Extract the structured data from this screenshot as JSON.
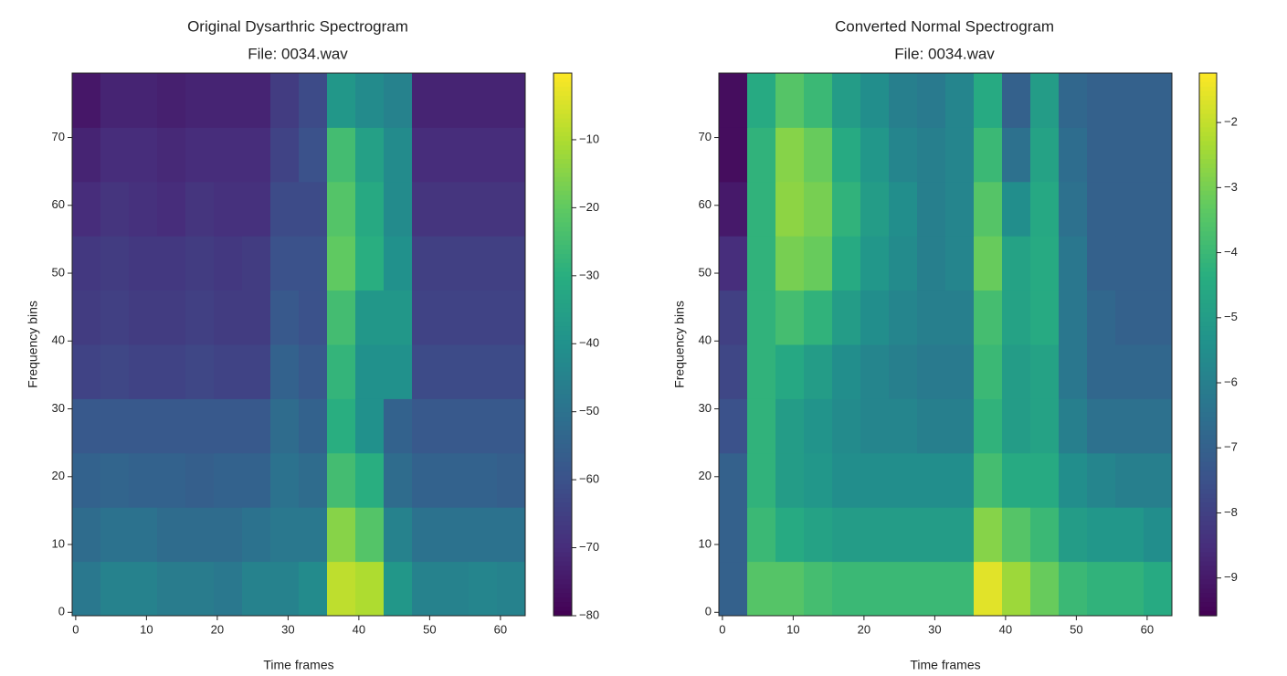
{
  "chart_data": [
    {
      "type": "heatmap",
      "title": "Original Dysarthric Spectrogram",
      "subtitle": "File: 0034.wav",
      "xlabel": "Time frames",
      "ylabel": "Frequency bins",
      "colormap": "viridis",
      "x_edges": [
        -0.5,
        3.5,
        7.5,
        11.5,
        15.5,
        19.5,
        23.5,
        27.5,
        31.5,
        35.5,
        39.5,
        43.5,
        47.5,
        51.5,
        55.5,
        59.5,
        63.5
      ],
      "y_edges": [
        -0.5,
        7.5,
        15.5,
        23.5,
        31.5,
        39.5,
        47.5,
        55.5,
        63.5,
        71.5,
        79.5
      ],
      "values": [
        [
          -48,
          -45,
          -45,
          -47,
          -47,
          -48,
          -45,
          -45,
          -42,
          -8,
          -10,
          -38,
          -45,
          -45,
          -44,
          -45
        ],
        [
          -52,
          -50,
          -50,
          -52,
          -52,
          -52,
          -50,
          -48,
          -48,
          -15,
          -22,
          -45,
          -50,
          -50,
          -50,
          -50
        ],
        [
          -55,
          -54,
          -55,
          -55,
          -56,
          -55,
          -55,
          -50,
          -52,
          -25,
          -30,
          -52,
          -55,
          -55,
          -55,
          -56
        ],
        [
          -58,
          -58,
          -58,
          -58,
          -58,
          -58,
          -58,
          -52,
          -55,
          -30,
          -40,
          -55,
          -58,
          -58,
          -58,
          -58
        ],
        [
          -64,
          -63,
          -64,
          -64,
          -63,
          -64,
          -64,
          -55,
          -58,
          -28,
          -40,
          -40,
          -62,
          -62,
          -62,
          -62
        ],
        [
          -66,
          -65,
          -66,
          -66,
          -65,
          -66,
          -66,
          -58,
          -60,
          -25,
          -38,
          -38,
          -64,
          -64,
          -64,
          -64
        ],
        [
          -67,
          -66,
          -67,
          -67,
          -66,
          -67,
          -66,
          -60,
          -60,
          -20,
          -30,
          -40,
          -65,
          -65,
          -65,
          -65
        ],
        [
          -70,
          -68,
          -69,
          -70,
          -68,
          -69,
          -69,
          -62,
          -62,
          -22,
          -32,
          -42,
          -68,
          -68,
          -68,
          -68
        ],
        [
          -72,
          -70,
          -70,
          -71,
          -70,
          -70,
          -70,
          -64,
          -60,
          -25,
          -35,
          -42,
          -70,
          -70,
          -70,
          -70
        ],
        [
          -75,
          -72,
          -72,
          -73,
          -72,
          -72,
          -72,
          -66,
          -62,
          -38,
          -42,
          -45,
          -72,
          -72,
          -72,
          -72
        ]
      ],
      "xlim": [
        -0.5,
        63.5
      ],
      "ylim": [
        -0.5,
        79.5
      ],
      "xticks": [
        0,
        10,
        20,
        30,
        40,
        50,
        60
      ],
      "yticks": [
        0,
        10,
        20,
        30,
        40,
        50,
        60,
        70
      ],
      "clim": [
        -80,
        -0.2
      ],
      "cticks": [
        {
          "value": -10,
          "label": "−10"
        },
        {
          "value": -20,
          "label": "−20"
        },
        {
          "value": -30,
          "label": "−30"
        },
        {
          "value": -40,
          "label": "−40"
        },
        {
          "value": -50,
          "label": "−50"
        },
        {
          "value": -60,
          "label": "−60"
        },
        {
          "value": -70,
          "label": "−70"
        },
        {
          "value": -80,
          "label": "−80"
        }
      ]
    },
    {
      "type": "heatmap",
      "title": "Converted Normal Spectrogram",
      "subtitle": "File: 0034.wav",
      "xlabel": "Time frames",
      "ylabel": "Frequency bins",
      "colormap": "viridis",
      "x_edges": [
        -0.5,
        3.5,
        7.5,
        11.5,
        15.5,
        19.5,
        23.5,
        27.5,
        31.5,
        35.5,
        39.5,
        43.5,
        47.5,
        51.5,
        55.5,
        59.5,
        63.5
      ],
      "y_edges": [
        -0.5,
        7.5,
        15.5,
        23.5,
        31.5,
        39.5,
        47.5,
        55.5,
        63.5,
        71.5,
        79.5
      ],
      "values": [
        [
          -7,
          -3.5,
          -3.5,
          -3.8,
          -4,
          -4,
          -4,
          -4,
          -4,
          -1.6,
          -2.5,
          -3.2,
          -4,
          -4.2,
          -4.2,
          -4.5
        ],
        [
          -7,
          -4,
          -4.5,
          -4.8,
          -5,
          -5,
          -5,
          -5,
          -5,
          -2.8,
          -3.5,
          -4,
          -5,
          -5.2,
          -5.2,
          -5.5
        ],
        [
          -7,
          -4.2,
          -5,
          -5.2,
          -5.5,
          -5.5,
          -5.5,
          -5.5,
          -5.5,
          -3.8,
          -4.5,
          -4.5,
          -5.5,
          -5.8,
          -6,
          -6
        ],
        [
          -7.5,
          -4.2,
          -5,
          -5.3,
          -5.6,
          -5.8,
          -5.8,
          -6,
          -6,
          -4.2,
          -5,
          -4.8,
          -6,
          -6.5,
          -6.5,
          -6.5
        ],
        [
          -7.8,
          -4.2,
          -4.6,
          -5,
          -5.5,
          -5.8,
          -6,
          -6.2,
          -6.2,
          -4,
          -5,
          -4.8,
          -6.3,
          -6.8,
          -6.8,
          -6.8
        ],
        [
          -8,
          -4.2,
          -3.8,
          -4.2,
          -5,
          -5.5,
          -5.8,
          -6,
          -6,
          -3.8,
          -4.8,
          -4.5,
          -6.3,
          -6.8,
          -7,
          -7
        ],
        [
          -8.5,
          -4.2,
          -3,
          -3.2,
          -4.5,
          -5.2,
          -5.6,
          -6,
          -5.8,
          -3.2,
          -4.8,
          -4.5,
          -6.3,
          -7,
          -7,
          -7
        ],
        [
          -9,
          -4.2,
          -2.7,
          -3,
          -4.2,
          -5,
          -5.5,
          -6,
          -5.8,
          -3.5,
          -5.5,
          -4.6,
          -6.5,
          -7,
          -7,
          -7
        ],
        [
          -9.3,
          -4.2,
          -2.8,
          -3.2,
          -4.5,
          -5.2,
          -5.8,
          -6,
          -5.8,
          -4,
          -6.5,
          -4.8,
          -6.6,
          -7,
          -7,
          -7
        ],
        [
          -9.3,
          -4.5,
          -3.5,
          -4,
          -5,
          -5.5,
          -6,
          -6.2,
          -5.8,
          -4.5,
          -7,
          -5,
          -6.8,
          -7,
          -7,
          -7
        ]
      ],
      "xlim": [
        -0.5,
        63.5
      ],
      "ylim": [
        -0.5,
        79.5
      ],
      "xticks": [
        0,
        10,
        20,
        30,
        40,
        50,
        60
      ],
      "yticks": [
        0,
        10,
        20,
        30,
        40,
        50,
        60,
        70
      ],
      "clim": [
        -9.58,
        -1.24
      ],
      "cticks": [
        {
          "value": -2,
          "label": "−2"
        },
        {
          "value": -3,
          "label": "−3"
        },
        {
          "value": -4,
          "label": "−4"
        },
        {
          "value": -5,
          "label": "−5"
        },
        {
          "value": -6,
          "label": "−6"
        },
        {
          "value": -7,
          "label": "−7"
        },
        {
          "value": -8,
          "label": "−8"
        },
        {
          "value": -9,
          "label": "−9"
        }
      ]
    }
  ]
}
